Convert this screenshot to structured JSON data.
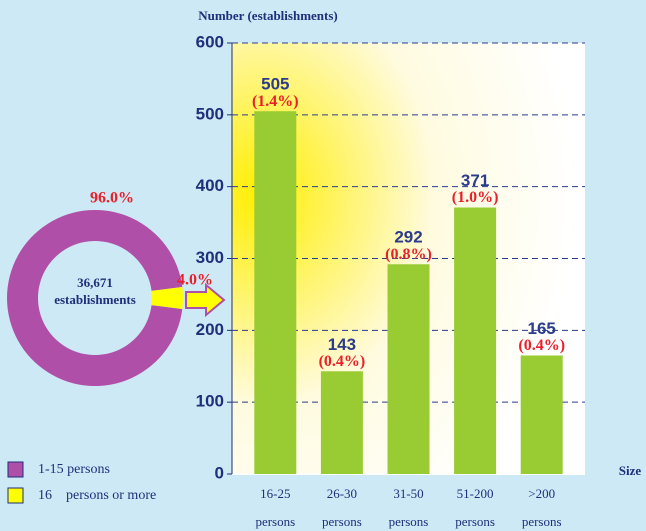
{
  "chart_data": [
    {
      "type": "pie",
      "categories": [
        "1-15 persons",
        "16    persons or more"
      ],
      "values": [
        96.0,
        4.0
      ],
      "value_labels": [
        "96.0%",
        "4.0%"
      ],
      "colors": [
        "#b04fa8",
        "#ffff00"
      ],
      "total": 36671,
      "total_label": "36,671",
      "total_unit": "establishments"
    },
    {
      "type": "bar",
      "y_label": "Number (establishments)",
      "x_label": "Size",
      "categories": [
        [
          "16-25",
          "persons"
        ],
        [
          "26-30",
          "persons"
        ],
        [
          "31-50",
          "persons"
        ],
        [
          "51-200",
          "persons"
        ],
        [
          ">200",
          "persons"
        ]
      ],
      "values": [
        505,
        143,
        292,
        371,
        165
      ],
      "shares": [
        1.4,
        0.4,
        0.8,
        1.0,
        0.4
      ],
      "share_labels": [
        "(1.4%)",
        "(0.4%)",
        "(0.8%)",
        "(1.0%)",
        "(0.4%)"
      ],
      "color": "#99cc33",
      "ylim": [
        0,
        600
      ],
      "yticks": [
        0,
        100,
        200,
        300,
        400,
        500,
        600
      ],
      "grid": true
    }
  ]
}
